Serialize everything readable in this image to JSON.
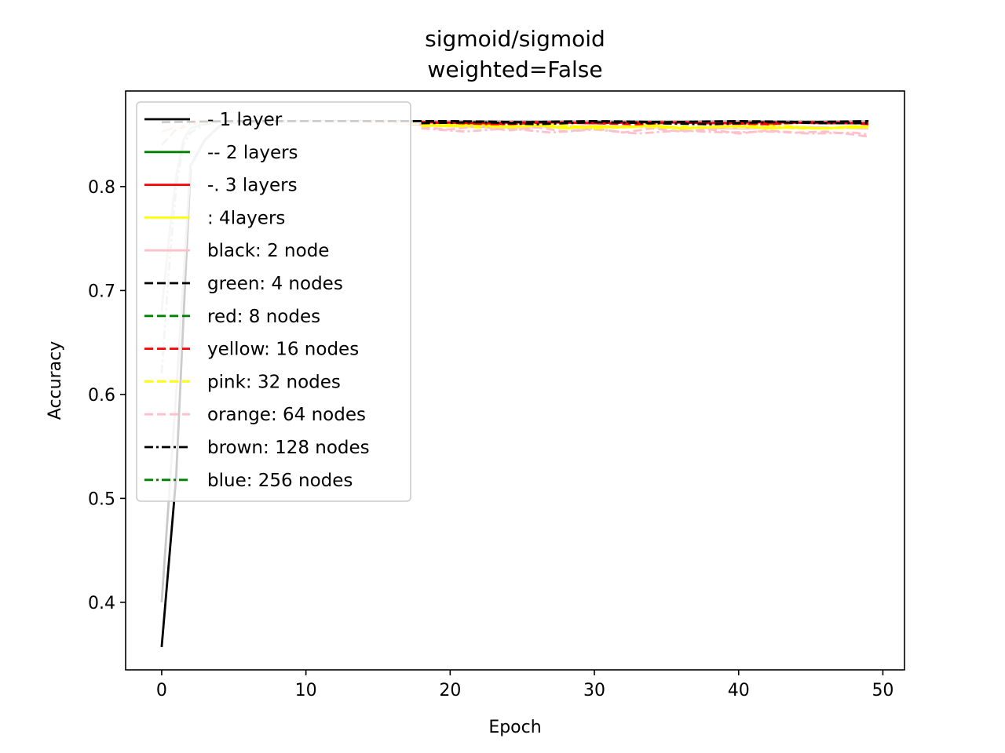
{
  "chart_data": {
    "type": "line",
    "title": "sigmoid/sigmoid",
    "subtitle": "weighted=False",
    "xlabel": "Epoch",
    "ylabel": "Accuracy",
    "xlim": [
      -2.5,
      51.5
    ],
    "ylim": [
      0.335,
      0.892
    ],
    "xticks": [
      0,
      10,
      20,
      30,
      40,
      50
    ],
    "yticks": [
      0.4,
      0.5,
      0.6,
      0.7,
      0.8
    ],
    "grid": false,
    "legend_position": "top-left",
    "legend": [
      {
        "label": "- 1 layer",
        "color": "#000000",
        "dash": "solid"
      },
      {
        "label": "-- 2 layers",
        "color": "#008000",
        "dash": "solid"
      },
      {
        "label": "-. 3 layers",
        "color": "#ff0000",
        "dash": "solid"
      },
      {
        "label": ": 4layers",
        "color": "#ffff00",
        "dash": "solid"
      },
      {
        "label": "black: 2 node",
        "color": "#ffc0cb",
        "dash": "solid"
      },
      {
        "label": "green: 4 nodes",
        "color": "#000000",
        "dash": "dashed"
      },
      {
        "label": "red: 8 nodes",
        "color": "#008000",
        "dash": "dashed"
      },
      {
        "label": "yellow: 16 nodes",
        "color": "#ff0000",
        "dash": "dashed"
      },
      {
        "label": "pink: 32 nodes",
        "color": "#ffff00",
        "dash": "dashed"
      },
      {
        "label": "orange: 64 nodes",
        "color": "#ffc0cb",
        "dash": "dashed"
      },
      {
        "label": "brown: 128 nodes",
        "color": "#000000",
        "dash": "dashdot"
      },
      {
        "label": "blue: 256 nodes",
        "color": "#008000",
        "dash": "dashdot"
      }
    ],
    "series": [
      {
        "color": "#000000",
        "dash": "solid",
        "x": [
          0,
          1,
          2,
          3,
          4,
          5,
          10,
          20,
          30,
          40,
          49
        ],
        "y": [
          0.357,
          0.52,
          0.82,
          0.845,
          0.858,
          0.862,
          0.863,
          0.863,
          0.863,
          0.863,
          0.863
        ]
      },
      {
        "color": "#c8c8c8",
        "dash": "solid",
        "x": [
          0,
          1,
          2,
          3,
          4,
          5,
          10,
          20,
          30,
          40,
          49
        ],
        "y": [
          0.4,
          0.6,
          0.82,
          0.845,
          0.858,
          0.862,
          0.863,
          0.863,
          0.863,
          0.863,
          0.863
        ]
      },
      {
        "color": "#c8dcc8",
        "dash": "solid",
        "x": [
          0,
          0.5,
          1,
          1.5,
          2,
          3,
          4,
          10,
          20,
          30,
          40,
          49
        ],
        "y": [
          0.68,
          0.75,
          0.81,
          0.845,
          0.856,
          0.861,
          0.863,
          0.863,
          0.863,
          0.863,
          0.863,
          0.863
        ]
      },
      {
        "color": "#c8c8c8",
        "dash": "dashdot",
        "x": [
          0,
          0.5,
          1,
          1.5,
          2,
          3,
          4,
          10,
          20,
          30,
          40,
          49
        ],
        "y": [
          0.62,
          0.72,
          0.8,
          0.84,
          0.852,
          0.86,
          0.862,
          0.863,
          0.863,
          0.863,
          0.863,
          0.863
        ]
      },
      {
        "color": "#c8c8c8",
        "dash": "dashed",
        "x": [
          0,
          1,
          2,
          3,
          5,
          10,
          20,
          30,
          40,
          49
        ],
        "y": [
          0.84,
          0.855,
          0.86,
          0.862,
          0.863,
          0.863,
          0.863,
          0.863,
          0.863,
          0.863
        ]
      },
      {
        "color": "#ffc0cb",
        "dash": "solid",
        "x": [
          0,
          1,
          2,
          3,
          5,
          10,
          15,
          20,
          25,
          30,
          35,
          40,
          45,
          49
        ],
        "y": [
          0.853,
          0.857,
          0.86,
          0.862,
          0.863,
          0.863,
          0.862,
          0.858,
          0.857,
          0.858,
          0.857,
          0.856,
          0.857,
          0.856
        ]
      },
      {
        "color": "#ffffe0",
        "dash": "dashed",
        "x": [
          0,
          1,
          2,
          3,
          5,
          10,
          15,
          20,
          25,
          30,
          35,
          40,
          45,
          49
        ],
        "y": [
          0.85,
          0.857,
          0.86,
          0.862,
          0.863,
          0.863,
          0.862,
          0.859,
          0.858,
          0.857,
          0.858,
          0.857,
          0.856,
          0.857
        ]
      },
      {
        "color": "#ffc0cb",
        "dash": "dashed",
        "x": [
          18,
          20,
          22,
          24,
          26,
          28,
          30,
          32,
          34,
          36,
          38,
          40,
          42,
          44,
          46,
          48,
          49
        ],
        "y": [
          0.857,
          0.855,
          0.858,
          0.854,
          0.857,
          0.853,
          0.856,
          0.852,
          0.856,
          0.853,
          0.855,
          0.851,
          0.854,
          0.852,
          0.853,
          0.85,
          0.848
        ]
      },
      {
        "color": "#ffc0cb",
        "dash": "dashdot",
        "x": [
          18,
          21,
          24,
          27,
          30,
          33,
          36,
          39,
          42,
          45,
          48,
          49
        ],
        "y": [
          0.856,
          0.853,
          0.856,
          0.852,
          0.855,
          0.851,
          0.854,
          0.852,
          0.853,
          0.851,
          0.852,
          0.85
        ]
      },
      {
        "color": "#ffff00",
        "dash": "solid",
        "x": [
          18,
          20,
          22,
          24,
          26,
          28,
          30,
          32,
          34,
          36,
          38,
          40,
          42,
          44,
          46,
          48,
          49
        ],
        "y": [
          0.859,
          0.858,
          0.86,
          0.857,
          0.859,
          0.856,
          0.858,
          0.857,
          0.859,
          0.856,
          0.857,
          0.858,
          0.856,
          0.857,
          0.856,
          0.858,
          0.857
        ]
      },
      {
        "color": "#ffff00",
        "dash": "dashed",
        "x": [
          18,
          21,
          24,
          27,
          30,
          33,
          36,
          39,
          42,
          45,
          48,
          49
        ],
        "y": [
          0.858,
          0.86,
          0.857,
          0.859,
          0.857,
          0.858,
          0.856,
          0.858,
          0.857,
          0.856,
          0.857,
          0.858
        ]
      },
      {
        "color": "#ffff00",
        "dash": "dashdot",
        "x": [
          18,
          22,
          26,
          30,
          34,
          38,
          42,
          46,
          49
        ],
        "y": [
          0.86,
          0.857,
          0.859,
          0.856,
          0.858,
          0.857,
          0.859,
          0.856,
          0.857
        ]
      },
      {
        "color": "#ff0000",
        "dash": "solid",
        "x": [
          18,
          22,
          26,
          30,
          34,
          38,
          42,
          46,
          49
        ],
        "y": [
          0.862,
          0.861,
          0.862,
          0.861,
          0.862,
          0.861,
          0.862,
          0.861,
          0.861
        ]
      },
      {
        "color": "#ff0000",
        "dash": "dashed",
        "x": [
          18,
          21,
          24,
          27,
          30,
          33,
          36,
          39,
          42,
          45,
          48,
          49
        ],
        "y": [
          0.861,
          0.862,
          0.86,
          0.862,
          0.861,
          0.86,
          0.862,
          0.861,
          0.86,
          0.862,
          0.861,
          0.86
        ]
      },
      {
        "color": "#ff0000",
        "dash": "dashdot",
        "x": [
          18,
          23,
          28,
          33,
          38,
          43,
          48,
          49
        ],
        "y": [
          0.862,
          0.86,
          0.861,
          0.862,
          0.86,
          0.861,
          0.862,
          0.861
        ]
      },
      {
        "color": "#000000",
        "dash": "dashed",
        "x": [
          0,
          5,
          10,
          15,
          20,
          25,
          30,
          35,
          40,
          45,
          49
        ],
        "y": [
          0.862,
          0.863,
          0.863,
          0.863,
          0.863,
          0.862,
          0.863,
          0.862,
          0.863,
          0.862,
          0.863
        ]
      },
      {
        "color": "#000000",
        "dash": "dashdot",
        "x": [
          18,
          22,
          26,
          30,
          34,
          38,
          42,
          46,
          49
        ],
        "y": [
          0.861,
          0.862,
          0.86,
          0.862,
          0.861,
          0.86,
          0.862,
          0.861,
          0.861
        ]
      }
    ]
  }
}
